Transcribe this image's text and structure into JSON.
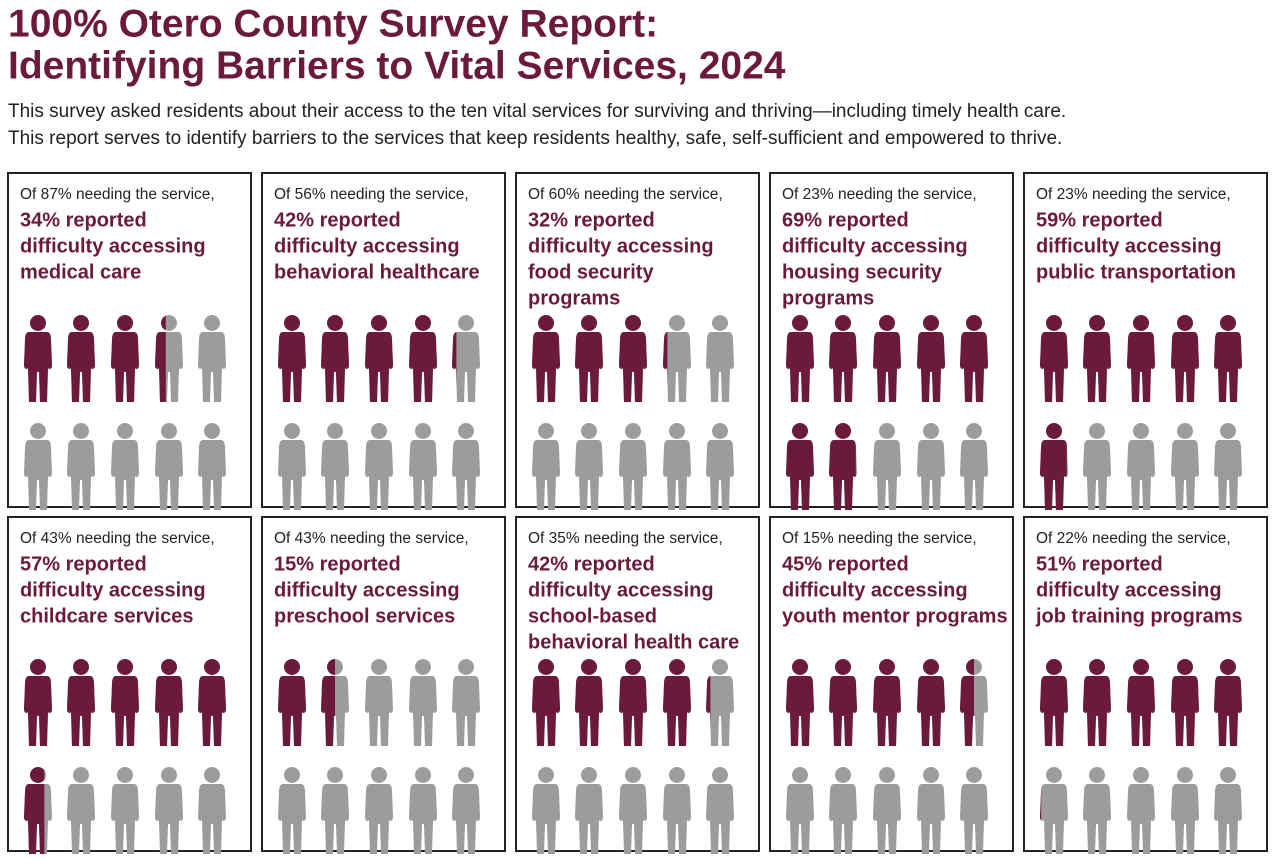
{
  "title": [
    "100% Otero County Survey Report:",
    "Identifying Barriers to Vital Services, 2024"
  ],
  "subtitle": [
    "This survey asked residents about their access to the ten vital services for surviving and thriving—including timely health care.",
    "This report serves to identify barriers to the services that keep residents healthy, safe, self-sufficient and empowered to thrive."
  ],
  "chart_data": [
    {
      "type": "pictogram",
      "header": "Of 87% needing the service,",
      "value": 34,
      "value_label": "34% reported",
      "lines": [
        "difficulty accessing",
        "medical care"
      ],
      "color": "#6b1a3b",
      "rest_color": "#9c9c9c"
    },
    {
      "type": "pictogram",
      "header": "Of 56% needing the service,",
      "value": 42,
      "value_label": "42% reported",
      "lines": [
        "difficulty accessing",
        "behavioral healthcare"
      ],
      "color": "#6b1a3b",
      "rest_color": "#9c9c9c"
    },
    {
      "type": "pictogram",
      "header": "Of 60% needing the service,",
      "value": 32,
      "value_label": "32% reported",
      "lines": [
        "difficulty accessing",
        "food security",
        "programs"
      ],
      "color": "#6b1a3b",
      "rest_color": "#9c9c9c"
    },
    {
      "type": "pictogram",
      "header": "Of 23% needing the service,",
      "value": 69,
      "value_label": "69% reported",
      "lines": [
        "difficulty accessing",
        "housing security",
        "programs"
      ],
      "color": "#6b1a3b",
      "rest_color": "#9c9c9c"
    },
    {
      "type": "pictogram",
      "header": "Of 23% needing the service,",
      "value": 59,
      "value_label": "59% reported",
      "lines": [
        "difficulty accessing",
        "public transportation"
      ],
      "color": "#6b1a3b",
      "rest_color": "#9c9c9c"
    },
    {
      "type": "pictogram",
      "header": "Of 43% needing the service,",
      "value": 57,
      "value_label": "57% reported",
      "lines": [
        "difficulty accessing",
        "childcare services"
      ],
      "color": "#6b1a3b",
      "rest_color": "#9c9c9c"
    },
    {
      "type": "pictogram",
      "header": "Of 43% needing the service,",
      "value": 15,
      "value_label": "15% reported",
      "lines": [
        "difficulty accessing",
        "preschool services"
      ],
      "color": "#6b1a3b",
      "rest_color": "#9c9c9c"
    },
    {
      "type": "pictogram",
      "header": "Of 35% needing the service,",
      "value": 42,
      "value_label": "42% reported",
      "lines": [
        "difficulty accessing",
        "school-based",
        "behavioral health care"
      ],
      "color": "#6b1a3b",
      "rest_color": "#9c9c9c"
    },
    {
      "type": "pictogram",
      "header": "Of 15% needing the service,",
      "value": 45,
      "value_label": "45% reported",
      "lines": [
        "difficulty accessing",
        "youth mentor programs"
      ],
      "color": "#6b1a3b",
      "rest_color": "#9c9c9c"
    },
    {
      "type": "pictogram",
      "header": "Of 22% needing the service,",
      "value": 51,
      "value_label": "51% reported",
      "lines": [
        "difficulty accessing",
        "job training programs"
      ],
      "color": "#6b1a3b",
      "rest_color": "#9c9c9c"
    }
  ]
}
